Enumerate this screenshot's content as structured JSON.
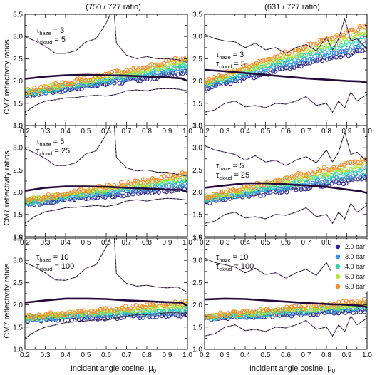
{
  "column_titles": [
    "(750 / 727 ratio)",
    "(631 / 727 ratio)"
  ],
  "y_label": "CM7 reflectivity ratios",
  "x_label": "Incident angle cosine, μ",
  "x_label_sub": "0",
  "legend": [
    {
      "label": "2.0 bar",
      "color": "#2f2a8c"
    },
    {
      "label": "3.0 bar",
      "color": "#3a8fd8"
    },
    {
      "label": "4.0 bar",
      "color": "#38d0a8"
    },
    {
      "label": "5.0 bar",
      "color": "#b6e43c"
    },
    {
      "label": "6.0 bar",
      "color": "#f28a30"
    }
  ],
  "chart_data": [
    {
      "type": "scatter",
      "row": 0,
      "col": 0,
      "title": "(750 / 727 ratio)",
      "annotation": {
        "haze": "3",
        "cloud": "5"
      },
      "xlim": [
        0.2,
        1.0
      ],
      "ylim": [
        1.0,
        3.5
      ],
      "xticks": [
        "0.2",
        "0.3",
        "0.4",
        "0.5",
        "0.6",
        "0.7",
        "0.8",
        "0.9",
        "1.0"
      ],
      "yticks": [
        "1.0",
        "1.5",
        "2.0",
        "2.5",
        "3.0",
        "3.5"
      ],
      "model": {
        "start": [
          0.2,
          1.72
        ],
        "end": [
          1.0,
          2.36
        ],
        "spread": 0.06
      },
      "mean": {
        "x": [
          0.2,
          0.3,
          0.4,
          0.5,
          0.6,
          0.7,
          0.8,
          0.9,
          0.97,
          1.0
        ],
        "y": [
          2.05,
          2.1,
          2.13,
          2.14,
          2.13,
          2.12,
          2.1,
          2.08,
          2.06,
          2.0
        ]
      },
      "upper": {
        "x": [
          0.2,
          0.25,
          0.3,
          0.35,
          0.4,
          0.45,
          0.5,
          0.55,
          0.6,
          0.62,
          0.63,
          0.64,
          0.65,
          0.7,
          0.75,
          0.8,
          0.85,
          0.9,
          0.95,
          1.0
        ],
        "y": [
          3.0,
          2.9,
          2.78,
          2.62,
          2.62,
          2.68,
          2.88,
          2.95,
          3.3,
          3.5,
          3.5,
          3.5,
          2.85,
          2.58,
          2.5,
          2.55,
          2.5,
          2.5,
          2.48,
          2.42
        ]
      },
      "lower": {
        "x": [
          0.2,
          0.25,
          0.3,
          0.35,
          0.4,
          0.45,
          0.5,
          0.55,
          0.6,
          0.65,
          0.7,
          0.75,
          0.8,
          0.85,
          0.9,
          0.95,
          1.0
        ],
        "y": [
          1.3,
          1.45,
          1.55,
          1.58,
          1.62,
          1.63,
          1.66,
          1.68,
          1.66,
          1.7,
          1.78,
          1.8,
          1.78,
          1.82,
          1.83,
          1.82,
          1.78
        ]
      }
    },
    {
      "type": "scatter",
      "row": 0,
      "col": 1,
      "title": "(631 / 727 ratio)",
      "annotation": {
        "haze": "3",
        "cloud": "5"
      },
      "xlim": [
        0.2,
        1.0
      ],
      "ylim": [
        1.0,
        3.5
      ],
      "xticks": [
        "0.2",
        "0.3",
        "0.4",
        "0.5",
        "0.6",
        "0.7",
        "0.8",
        "0.9",
        "1.0"
      ],
      "yticks": [
        "1.0",
        "1.5",
        "2.0",
        "2.5",
        "3.0",
        "3.5"
      ],
      "model": {
        "start": [
          0.2,
          1.92
        ],
        "end": [
          1.0,
          2.98
        ],
        "spread": 0.1
      },
      "mean": {
        "x": [
          0.2,
          0.3,
          0.4,
          0.5,
          0.6,
          0.7,
          0.8,
          0.9,
          0.97,
          1.0
        ],
        "y": [
          2.25,
          2.22,
          2.18,
          2.14,
          2.1,
          2.06,
          2.03,
          2.0,
          1.99,
          1.96
        ]
      },
      "upper": {
        "x": [
          0.2,
          0.25,
          0.3,
          0.35,
          0.4,
          0.45,
          0.5,
          0.55,
          0.6,
          0.65,
          0.7,
          0.75,
          0.8,
          0.83,
          0.86,
          0.89,
          0.92,
          0.95,
          1.0
        ],
        "y": [
          3.05,
          2.95,
          2.9,
          2.88,
          2.75,
          2.85,
          2.7,
          2.75,
          2.62,
          2.75,
          2.82,
          2.68,
          2.98,
          2.7,
          2.95,
          3.4,
          2.9,
          2.95,
          2.72
        ]
      },
      "lower": {
        "x": [
          0.2,
          0.25,
          0.3,
          0.35,
          0.4,
          0.45,
          0.5,
          0.55,
          0.6,
          0.65,
          0.7,
          0.75,
          0.8,
          0.83,
          0.86,
          0.89,
          0.92,
          0.95,
          1.0
        ],
        "y": [
          1.3,
          1.35,
          1.5,
          1.55,
          1.42,
          1.45,
          1.4,
          1.5,
          1.48,
          1.55,
          1.65,
          1.45,
          1.5,
          1.3,
          1.55,
          1.4,
          1.75,
          1.55,
          1.7
        ]
      }
    },
    {
      "type": "scatter",
      "row": 1,
      "col": 0,
      "annotation": {
        "haze": "5",
        "cloud": "25"
      },
      "xlim": [
        0.2,
        1.0
      ],
      "ylim": [
        1.0,
        3.5
      ],
      "xticks": [
        "0.2",
        "0.3",
        "0.4",
        "0.5",
        "0.6",
        "0.7",
        "0.8",
        "0.9",
        "1.0"
      ],
      "yticks": [
        "1.0",
        "1.5",
        "2.0",
        "2.5",
        "3.0",
        "3.5"
      ],
      "model": {
        "start": [
          0.2,
          1.78
        ],
        "end": [
          1.0,
          2.26
        ],
        "spread": 0.06
      },
      "mean": {
        "x": [
          0.2,
          0.3,
          0.4,
          0.5,
          0.6,
          0.7,
          0.8,
          0.9,
          0.97,
          1.0
        ],
        "y": [
          2.03,
          2.1,
          2.13,
          2.13,
          2.12,
          2.1,
          2.08,
          2.06,
          2.05,
          2.0
        ]
      },
      "upper": {
        "x": [
          0.2,
          0.25,
          0.3,
          0.35,
          0.4,
          0.45,
          0.5,
          0.55,
          0.6,
          0.62,
          0.63,
          0.64,
          0.65,
          0.7,
          0.75,
          0.8,
          0.85,
          0.9,
          0.95,
          1.0
        ],
        "y": [
          2.98,
          2.88,
          2.76,
          2.6,
          2.6,
          2.66,
          2.86,
          2.93,
          3.3,
          3.5,
          3.5,
          3.5,
          2.78,
          2.55,
          2.48,
          2.5,
          2.45,
          2.45,
          2.4,
          2.36
        ]
      },
      "lower": {
        "x": [
          0.2,
          0.25,
          0.3,
          0.35,
          0.4,
          0.45,
          0.5,
          0.55,
          0.6,
          0.65,
          0.7,
          0.75,
          0.8,
          0.85,
          0.9,
          0.95,
          1.0
        ],
        "y": [
          1.3,
          1.46,
          1.56,
          1.6,
          1.65,
          1.66,
          1.68,
          1.7,
          1.68,
          1.72,
          1.8,
          1.83,
          1.8,
          1.84,
          1.86,
          1.85,
          1.82
        ]
      }
    },
    {
      "type": "scatter",
      "row": 1,
      "col": 1,
      "annotation": {
        "haze": "5",
        "cloud": "25"
      },
      "xlim": [
        0.2,
        1.0
      ],
      "ylim": [
        1.0,
        3.5
      ],
      "xticks": [
        "0.2",
        "0.3",
        "0.4",
        "0.5",
        "0.6",
        "0.7",
        "0.8",
        "0.9",
        "1.0"
      ],
      "yticks": [
        "1.0",
        "1.5",
        "2.0",
        "2.5",
        "3.0",
        "3.5"
      ],
      "model": {
        "start": [
          0.2,
          1.84
        ],
        "end": [
          1.0,
          2.52
        ],
        "spread": 0.08
      },
      "mean": {
        "x": [
          0.2,
          0.3,
          0.4,
          0.5,
          0.6,
          0.7,
          0.8,
          0.9,
          0.97,
          1.0
        ],
        "y": [
          2.1,
          2.15,
          2.2,
          2.2,
          2.18,
          2.15,
          2.12,
          2.06,
          2.02,
          1.98
        ]
      },
      "upper": {
        "x": [
          0.2,
          0.25,
          0.3,
          0.35,
          0.4,
          0.45,
          0.5,
          0.55,
          0.6,
          0.65,
          0.7,
          0.75,
          0.8,
          0.83,
          0.86,
          0.89,
          0.92,
          0.95,
          1.0
        ],
        "y": [
          3.05,
          2.95,
          2.9,
          2.85,
          2.72,
          2.82,
          2.68,
          2.72,
          2.6,
          2.72,
          2.8,
          2.66,
          2.95,
          2.68,
          2.9,
          3.35,
          2.85,
          2.9,
          2.7
        ]
      },
      "lower": {
        "x": [
          0.2,
          0.25,
          0.3,
          0.35,
          0.4,
          0.45,
          0.5,
          0.55,
          0.6,
          0.65,
          0.7,
          0.75,
          0.8,
          0.83,
          0.86,
          0.89,
          0.92,
          0.95,
          1.0
        ],
        "y": [
          1.3,
          1.35,
          1.5,
          1.55,
          1.42,
          1.45,
          1.4,
          1.5,
          1.48,
          1.55,
          1.65,
          1.45,
          1.5,
          1.3,
          1.55,
          1.4,
          1.75,
          1.55,
          1.7
        ]
      }
    },
    {
      "type": "scatter",
      "row": 2,
      "col": 0,
      "annotation": {
        "haze": "10",
        "cloud": "100"
      },
      "xlim": [
        0.2,
        1.0
      ],
      "ylim": [
        1.0,
        3.5
      ],
      "xticks": [
        "0.2",
        "0.3",
        "0.4",
        "0.5",
        "0.6",
        "0.7",
        "0.8",
        "0.9",
        "1.0"
      ],
      "yticks": [
        "1.0",
        "1.5",
        "2.0",
        "2.5",
        "3.0",
        "3.5"
      ],
      "model": {
        "start": [
          0.2,
          1.7
        ],
        "end": [
          1.0,
          1.92
        ],
        "spread": 0.05
      },
      "mean": {
        "x": [
          0.2,
          0.3,
          0.4,
          0.5,
          0.6,
          0.7,
          0.8,
          0.9,
          0.97,
          1.0
        ],
        "y": [
          2.05,
          2.1,
          2.14,
          2.14,
          2.13,
          2.1,
          2.08,
          2.06,
          2.05,
          1.98
        ]
      },
      "upper": {
        "x": [
          0.2,
          0.25,
          0.3,
          0.35,
          0.4,
          0.45,
          0.5,
          0.55,
          0.6,
          0.62,
          0.63,
          0.64,
          0.65,
          0.7,
          0.75,
          0.8,
          0.85,
          0.9,
          0.95,
          1.0
        ],
        "y": [
          2.95,
          2.85,
          2.72,
          2.56,
          2.55,
          2.62,
          2.82,
          2.9,
          3.3,
          3.5,
          3.5,
          3.5,
          2.7,
          2.48,
          2.42,
          2.44,
          2.4,
          2.38,
          2.4,
          2.28
        ]
      },
      "lower": {
        "x": [
          0.2,
          0.25,
          0.3,
          0.35,
          0.4,
          0.45,
          0.5,
          0.55,
          0.6,
          0.65,
          0.7,
          0.75,
          0.8,
          0.85,
          0.9,
          0.95,
          1.0
        ],
        "y": [
          1.25,
          1.4,
          1.5,
          1.55,
          1.6,
          1.62,
          1.64,
          1.66,
          1.66,
          1.7,
          1.75,
          1.78,
          1.78,
          1.8,
          1.82,
          1.82,
          1.8
        ]
      }
    },
    {
      "type": "scatter",
      "row": 2,
      "col": 1,
      "annotation": {
        "haze": "10",
        "cloud": "100"
      },
      "xlim": [
        0.2,
        1.0
      ],
      "ylim": [
        1.0,
        3.5
      ],
      "xticks": [
        "0.2",
        "0.3",
        "0.4",
        "0.5",
        "0.6",
        "0.7",
        "0.8",
        "0.9",
        "1.0"
      ],
      "yticks": [
        "1.0",
        "1.5",
        "2.0",
        "2.5",
        "3.0",
        "3.5"
      ],
      "model": {
        "start": [
          0.2,
          1.72
        ],
        "end": [
          1.0,
          1.98
        ],
        "spread": 0.04
      },
      "mean": {
        "x": [
          0.2,
          0.3,
          0.4,
          0.5,
          0.6,
          0.7,
          0.8,
          0.9,
          0.97,
          1.0
        ],
        "y": [
          2.12,
          2.14,
          2.13,
          2.1,
          2.07,
          2.04,
          2.02,
          2.0,
          1.98,
          1.95
        ]
      },
      "upper": {
        "x": [
          0.2,
          0.25,
          0.3,
          0.35,
          0.4,
          0.45,
          0.5,
          0.55,
          0.6,
          0.65,
          0.7,
          0.75,
          0.8,
          0.83,
          0.86,
          0.89,
          0.92,
          0.95,
          1.0
        ],
        "y": [
          3.05,
          2.95,
          2.9,
          2.85,
          2.72,
          2.82,
          2.68,
          2.72,
          2.6,
          2.72,
          2.8,
          2.66,
          2.95,
          2.68,
          2.9,
          3.35,
          2.85,
          2.9,
          2.7
        ]
      },
      "lower": {
        "x": [
          0.2,
          0.25,
          0.3,
          0.35,
          0.4,
          0.45,
          0.5,
          0.55,
          0.6,
          0.65,
          0.7,
          0.75,
          0.8,
          0.83,
          0.86,
          0.89,
          0.92,
          0.95,
          1.0
        ],
        "y": [
          1.3,
          1.35,
          1.5,
          1.55,
          1.42,
          1.45,
          1.4,
          1.5,
          1.48,
          1.55,
          1.65,
          1.45,
          1.5,
          1.3,
          1.55,
          1.4,
          1.75,
          1.55,
          1.7
        ]
      }
    }
  ]
}
